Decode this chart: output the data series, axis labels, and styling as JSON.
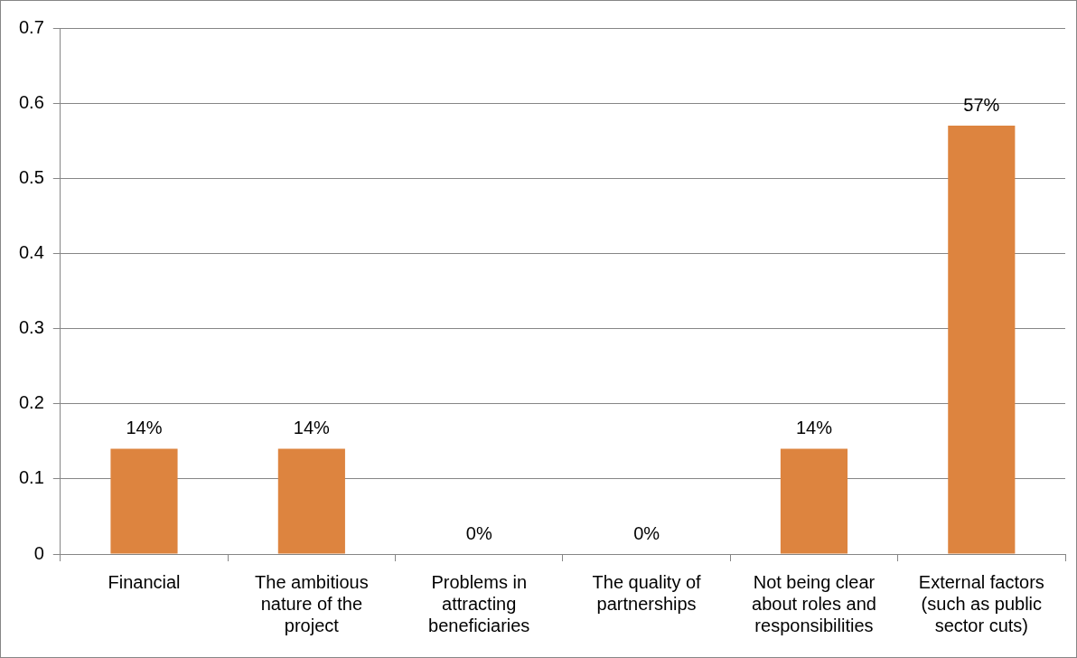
{
  "chart_data": {
    "type": "bar",
    "categories": [
      "Financial",
      "The ambitious nature of the project",
      "Problems in attracting beneficiaries",
      "The quality of partnerships",
      "Not being clear about roles and responsibilities",
      "External factors (such as public sector cuts)"
    ],
    "values": [
      0.14,
      0.14,
      0,
      0,
      0.14,
      0.57
    ],
    "value_labels": [
      "14%",
      "14%",
      "0%",
      "0%",
      "14%",
      "57%"
    ],
    "color": "#dd843f",
    "ylim": [
      0,
      0.7
    ],
    "yticks": [
      0,
      0.1,
      0.2,
      0.3,
      0.4,
      0.5,
      0.6,
      0.7
    ],
    "grid": "y",
    "legend": false
  }
}
